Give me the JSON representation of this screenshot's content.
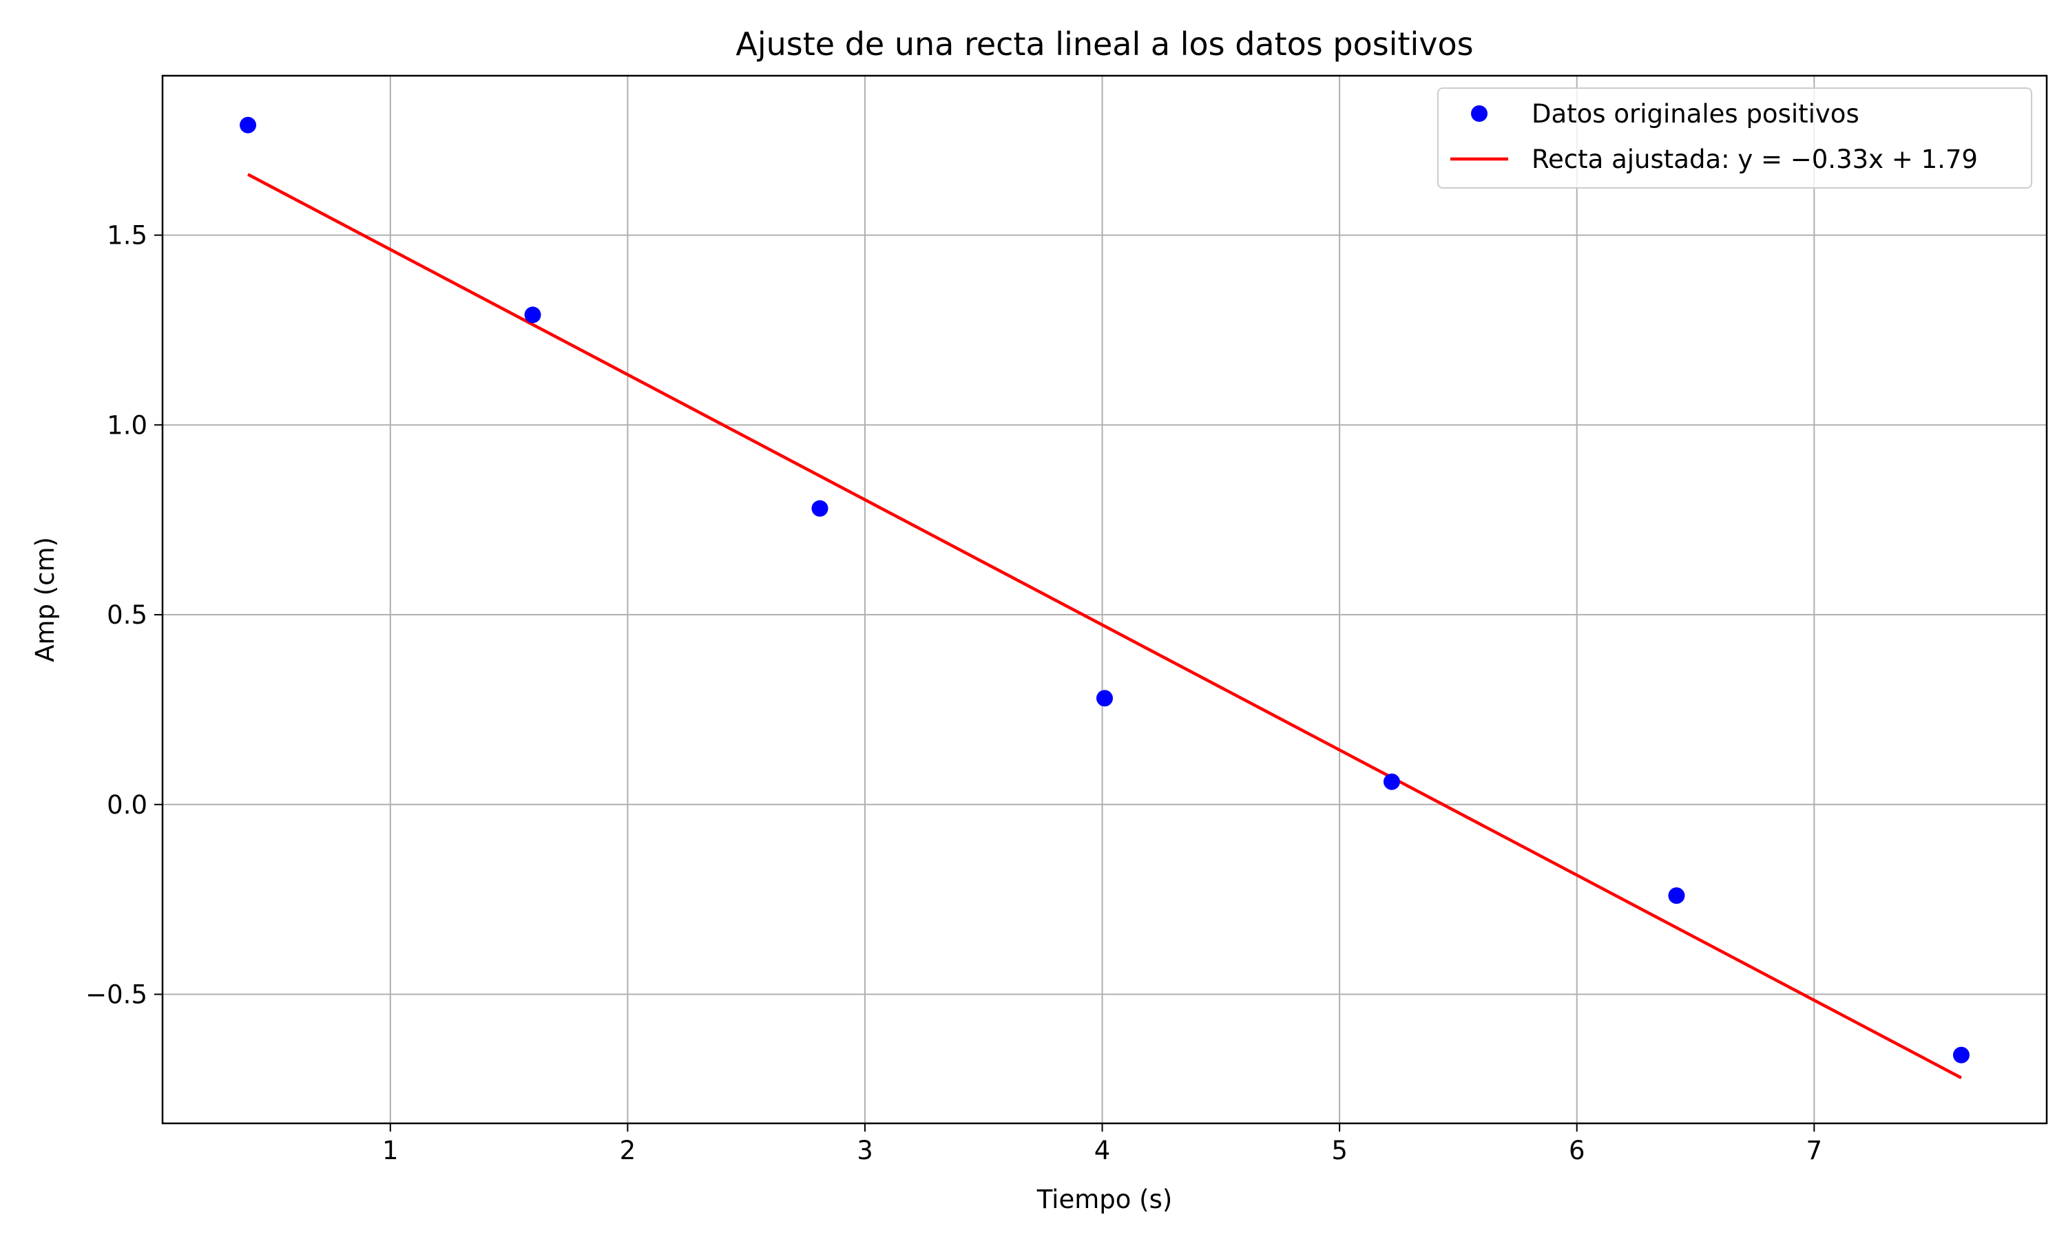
{
  "chart_data": {
    "type": "scatter",
    "title": "Ajuste de una recta lineal a los datos positivos",
    "xlabel": "Tiempo (s)",
    "ylabel": "Amp (cm)",
    "xlim": [
      0.04,
      7.98
    ],
    "ylim": [
      -0.84,
      1.92
    ],
    "xticks": [
      1,
      2,
      3,
      4,
      5,
      6,
      7
    ],
    "xtick_labels": [
      "1",
      "2",
      "3",
      "4",
      "5",
      "6",
      "7"
    ],
    "yticks": [
      -0.5,
      0.0,
      0.5,
      1.0,
      1.5
    ],
    "ytick_labels": [
      "−0.5",
      "0.0",
      "0.5",
      "1.0",
      "1.5"
    ],
    "grid": true,
    "legend_position": "top-right",
    "series": [
      {
        "name": "Datos originales positivos",
        "kind": "scatter",
        "color": "#0000ff",
        "x": [
          0.4,
          1.6,
          2.81,
          4.01,
          5.22,
          6.42,
          7.62
        ],
        "y": [
          1.79,
          1.29,
          0.78,
          0.28,
          0.06,
          -0.24,
          -0.66
        ]
      },
      {
        "name": "Recta ajustada: y = −0.33x + 1.79",
        "kind": "line",
        "color": "#ff0000",
        "x": [
          0.4,
          7.62
        ],
        "y": [
          1.66,
          -0.72
        ]
      }
    ]
  }
}
